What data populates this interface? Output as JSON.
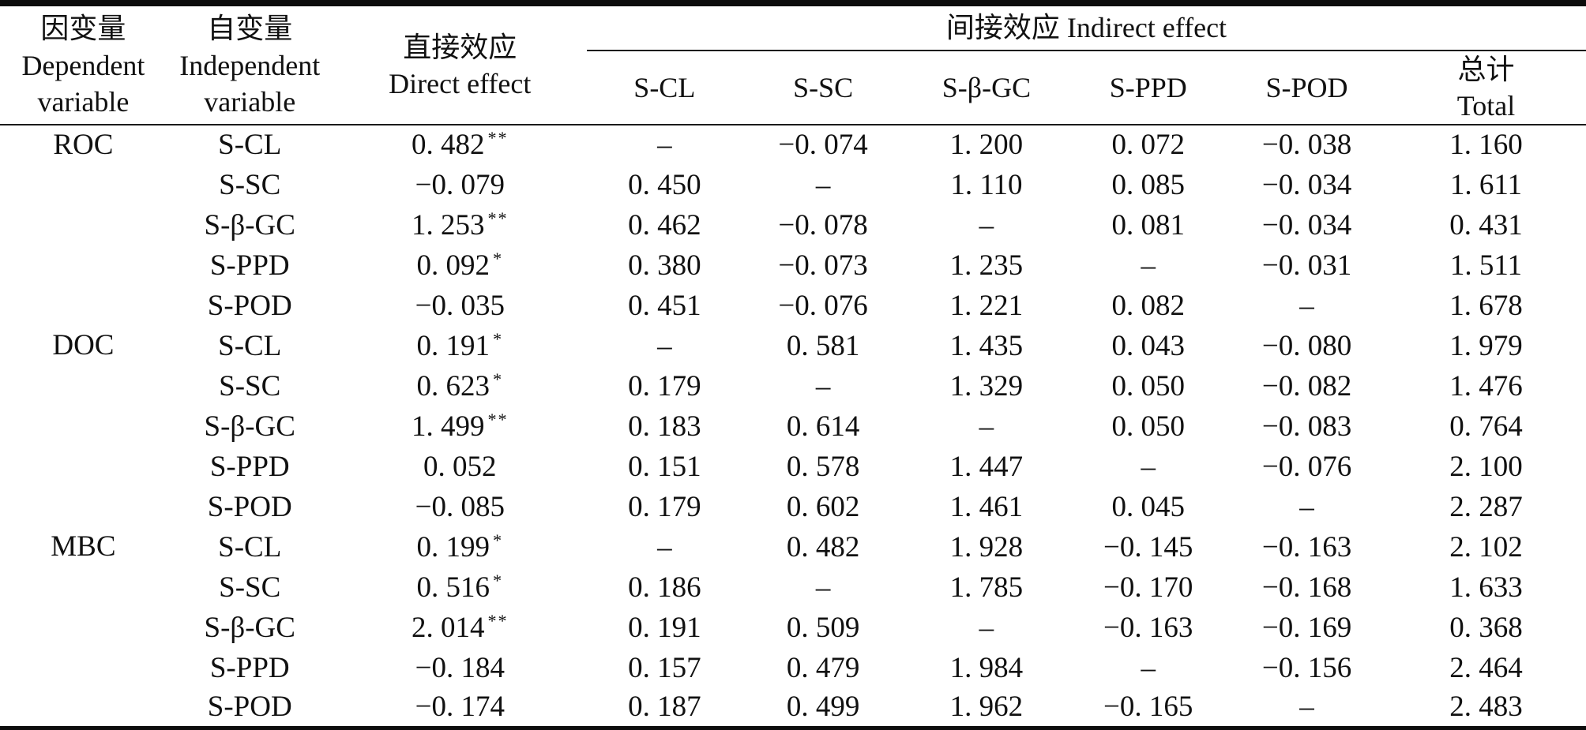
{
  "table": {
    "header": {
      "dependent": "因变量\nDependent\nvariable",
      "independent": "自变量\nIndependent\nvariable",
      "direct": "直接效应\nDirect effect",
      "indirect_group": "间接效应 Indirect effect",
      "indirect_cols": [
        "S-CL",
        "S-SC",
        "S-β-GC",
        "S-PPD",
        "S-POD"
      ],
      "total": "总计\nTotal"
    },
    "groups": [
      {
        "dependent": "ROC",
        "rows": [
          {
            "independent": "S-CL",
            "direct": "0. 482",
            "sig": "**",
            "indirect": [
              "–",
              "−0. 074",
              "1. 200",
              "0. 072",
              "−0. 038"
            ],
            "total": "1. 160"
          },
          {
            "independent": "S-SC",
            "direct": "−0. 079",
            "sig": "",
            "indirect": [
              "0. 450",
              "–",
              "1. 110",
              "0. 085",
              "−0. 034"
            ],
            "total": "1. 611"
          },
          {
            "independent": "S-β-GC",
            "direct": "1. 253",
            "sig": "**",
            "indirect": [
              "0. 462",
              "−0. 078",
              "–",
              "0. 081",
              "−0. 034"
            ],
            "total": "0. 431"
          },
          {
            "independent": "S-PPD",
            "direct": "0. 092",
            "sig": "*",
            "indirect": [
              "0. 380",
              "−0. 073",
              "1. 235",
              "–",
              "−0. 031"
            ],
            "total": "1. 511"
          },
          {
            "independent": "S-POD",
            "direct": "−0. 035",
            "sig": "",
            "indirect": [
              "0. 451",
              "−0. 076",
              "1. 221",
              "0. 082",
              "–"
            ],
            "total": "1. 678"
          }
        ]
      },
      {
        "dependent": "DOC",
        "rows": [
          {
            "independent": "S-CL",
            "direct": "0. 191",
            "sig": "*",
            "indirect": [
              "–",
              "0. 581",
              "1. 435",
              "0. 043",
              "−0. 080"
            ],
            "total": "1. 979"
          },
          {
            "independent": "S-SC",
            "direct": "0. 623",
            "sig": "*",
            "indirect": [
              "0. 179",
              "–",
              "1. 329",
              "0. 050",
              "−0. 082"
            ],
            "total": "1. 476"
          },
          {
            "independent": "S-β-GC",
            "direct": "1. 499",
            "sig": "**",
            "indirect": [
              "0. 183",
              "0. 614",
              "–",
              "0. 050",
              "−0. 083"
            ],
            "total": "0. 764"
          },
          {
            "independent": "S-PPD",
            "direct": "0. 052",
            "sig": "",
            "indirect": [
              "0. 151",
              "0. 578",
              "1. 447",
              "–",
              "−0. 076"
            ],
            "total": "2. 100"
          },
          {
            "independent": "S-POD",
            "direct": "−0. 085",
            "sig": "",
            "indirect": [
              "0. 179",
              "0. 602",
              "1. 461",
              "0. 045",
              "–"
            ],
            "total": "2. 287"
          }
        ]
      },
      {
        "dependent": "MBC",
        "rows": [
          {
            "independent": "S-CL",
            "direct": "0. 199",
            "sig": "*",
            "indirect": [
              "–",
              "0. 482",
              "1. 928",
              "−0. 145",
              "−0. 163"
            ],
            "total": "2. 102"
          },
          {
            "independent": "S-SC",
            "direct": "0. 516",
            "sig": "*",
            "indirect": [
              "0. 186",
              "–",
              "1. 785",
              "−0. 170",
              "−0. 168"
            ],
            "total": "1. 633"
          },
          {
            "independent": "S-β-GC",
            "direct": "2. 014",
            "sig": "**",
            "indirect": [
              "0. 191",
              "0. 509",
              "–",
              "−0. 163",
              "−0. 169"
            ],
            "total": "0. 368"
          },
          {
            "independent": "S-PPD",
            "direct": "−0. 184",
            "sig": "",
            "indirect": [
              "0. 157",
              "0. 479",
              "1. 984",
              "–",
              "−0. 156"
            ],
            "total": "2. 464"
          },
          {
            "independent": "S-POD",
            "direct": "−0. 174",
            "sig": "",
            "indirect": [
              "0. 187",
              "0. 499",
              "1. 962",
              "−0. 165",
              "–"
            ],
            "total": "2. 483"
          }
        ]
      }
    ]
  }
}
